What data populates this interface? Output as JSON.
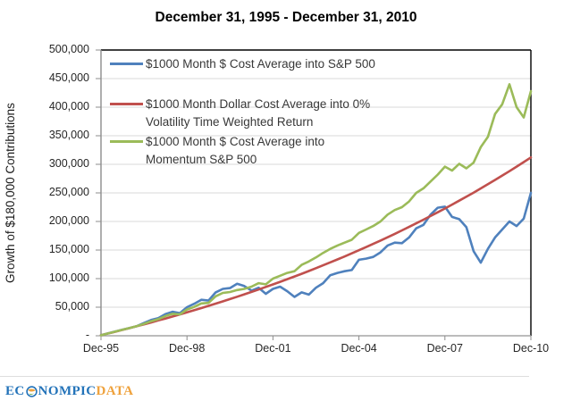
{
  "title": "December 31, 1995 - December 31, 2010",
  "y_axis_label": "Growth of $180,000 Contributions",
  "logo": {
    "prefix": "EC",
    "middle": "NOMPIC",
    "suffix": "DATA"
  },
  "legend": {
    "items": [
      {
        "series": "sp500",
        "color": "#4F81BD",
        "lines": [
          "$1000 Month $ Cost Average into S&P 500"
        ]
      },
      {
        "series": "zero-vol-twr",
        "color": "#C0504D",
        "lines": [
          "$1000 Month Dollar Cost Average into 0%",
          "Volatility Time Weighted Return"
        ]
      },
      {
        "series": "momentum",
        "color": "#9BBB59",
        "lines": [
          "$1000 Month $ Cost Average into",
          "Momentum S&P 500"
        ]
      }
    ]
  },
  "chart_data": {
    "type": "line",
    "title": "December 31, 1995 - December 31, 2010",
    "xlabel": "",
    "ylabel": "Growth of $180,000 Contributions",
    "x_unit": "months since Dec-1995 (quarterly samples)",
    "y_unit": "USD thousands",
    "xlim": [
      0,
      180
    ],
    "ylim": [
      0,
      500
    ],
    "grid": "horizontal",
    "legend_position": "top-left-inside",
    "x_tick_months": [
      0,
      36,
      72,
      108,
      144,
      180
    ],
    "x_tick_labels": [
      "Dec-95",
      "Dec-98",
      "Dec-01",
      "Dec-04",
      "Dec-07",
      "Dec-10"
    ],
    "y_tick_values": [
      0,
      50,
      100,
      150,
      200,
      250,
      300,
      350,
      400,
      450,
      500
    ],
    "y_tick_labels": [
      "-",
      "50,000",
      "100,000",
      "150,000",
      "200,000",
      "250,000",
      "300,000",
      "350,000",
      "400,000",
      "450,000",
      "500,000"
    ],
    "x": [
      0,
      3,
      6,
      9,
      12,
      15,
      18,
      21,
      24,
      27,
      30,
      33,
      36,
      39,
      42,
      45,
      48,
      51,
      54,
      57,
      60,
      63,
      66,
      69,
      72,
      75,
      78,
      81,
      84,
      87,
      90,
      93,
      96,
      99,
      102,
      105,
      108,
      111,
      114,
      117,
      120,
      123,
      126,
      129,
      132,
      135,
      138,
      141,
      144,
      147,
      150,
      153,
      156,
      159,
      162,
      165,
      168,
      171,
      174,
      177,
      180
    ],
    "series": [
      {
        "name": "$1000 Month $ Cost Average into S&P 500",
        "color": "#4F81BD",
        "values": [
          1.0,
          4.2,
          7.5,
          10.8,
          13.6,
          16.8,
          22.3,
          27.6,
          31.0,
          38.0,
          42.0,
          39.5,
          50.0,
          56.0,
          63.0,
          61.5,
          76.0,
          82.0,
          83.5,
          91.0,
          87.0,
          79.0,
          84.0,
          73.5,
          82.0,
          86.0,
          78.0,
          68.0,
          76.0,
          72.0,
          84.0,
          92.0,
          106.0,
          110.0,
          113.0,
          115.0,
          133.0,
          135.0,
          138.0,
          146.0,
          158.0,
          163.0,
          162.0,
          172.0,
          188.0,
          194.0,
          212.0,
          224.0,
          226.0,
          208.0,
          204.0,
          190.0,
          148.0,
          128.0,
          152.0,
          172.0,
          186.0,
          200.0,
          192.0,
          205.0,
          250.0
        ]
      },
      {
        "name": "$1000 Month Dollar Cost Average into 0% Volatility Time Weighted Return",
        "color": "#C0504D",
        "values": [
          1.0,
          4.0,
          7.1,
          10.3,
          13.4,
          16.7,
          20.0,
          23.3,
          26.8,
          30.2,
          33.8,
          37.3,
          41.0,
          44.7,
          48.5,
          52.3,
          56.2,
          60.2,
          64.2,
          68.3,
          72.5,
          76.7,
          81.0,
          85.4,
          89.9,
          94.4,
          99.0,
          103.7,
          108.5,
          113.3,
          118.3,
          123.3,
          128.4,
          133.6,
          138.8,
          144.2,
          149.7,
          155.2,
          160.8,
          166.6,
          172.4,
          178.3,
          184.4,
          190.5,
          196.7,
          203.1,
          209.5,
          216.1,
          222.7,
          229.5,
          236.4,
          243.4,
          250.5,
          257.8,
          265.2,
          272.7,
          280.3,
          288.0,
          295.9,
          303.9,
          312.1
        ]
      },
      {
        "name": "$1000 Month $ Cost Average into Momentum S&P 500",
        "color": "#9BBB59",
        "values": [
          1.0,
          4.1,
          7.3,
          10.6,
          13.8,
          16.9,
          21.0,
          25.5,
          29.0,
          34.5,
          38.5,
          37.5,
          46.0,
          50.5,
          56.5,
          57.5,
          69.0,
          75.0,
          76.5,
          80.0,
          82.0,
          86.0,
          92.0,
          90.0,
          100.0,
          105.0,
          110.0,
          113.0,
          124.0,
          130.0,
          137.0,
          145.0,
          152.0,
          158.0,
          163.0,
          168.0,
          180.0,
          186.0,
          192.0,
          200.0,
          212.0,
          220.0,
          225.0,
          235.0,
          250.0,
          258.0,
          270.0,
          282.0,
          296.0,
          289.0,
          301.0,
          293.0,
          303.0,
          330.0,
          348.0,
          388.0,
          405.0,
          440.0,
          400.0,
          382.0,
          428.0
        ]
      }
    ]
  }
}
